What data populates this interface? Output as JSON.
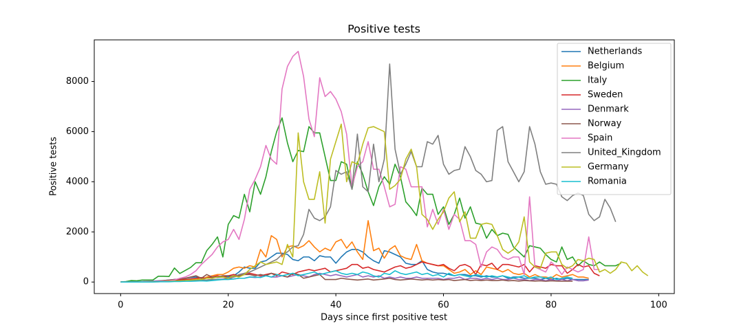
{
  "chart_data": {
    "type": "line",
    "title": "Positive tests",
    "x_label": "Days since first positive test",
    "y_label": "Positive tests",
    "xlim": [
      -4.9,
      102.9
    ],
    "ylim": [
      -460,
      9660
    ],
    "xticks": [
      0,
      20,
      40,
      60,
      80,
      100
    ],
    "yticks": [
      0,
      2000,
      4000,
      6000,
      8000
    ],
    "legend": "upper right",
    "x": [
      0,
      1,
      2,
      3,
      4,
      5,
      6,
      7,
      8,
      9,
      10,
      11,
      12,
      13,
      14,
      15,
      16,
      17,
      18,
      19,
      20,
      21,
      22,
      23,
      24,
      25,
      26,
      27,
      28,
      29,
      30,
      31,
      32,
      33,
      34,
      35,
      36,
      37,
      38,
      39,
      40,
      41,
      42,
      43,
      44,
      45,
      46,
      47,
      48,
      49,
      50,
      51,
      52,
      53,
      54,
      55,
      56,
      57,
      58,
      59,
      60,
      61,
      62,
      63,
      64,
      65,
      66,
      67,
      68,
      69,
      70,
      71,
      72,
      73,
      74,
      75,
      76,
      77,
      78,
      79,
      80,
      81,
      82,
      83,
      84,
      85,
      86,
      87,
      88,
      89,
      90,
      91,
      92,
      93,
      94,
      95,
      96,
      97,
      98
    ],
    "series": [
      {
        "name": "Netherlands",
        "color": "#1f77b4",
        "values": [
          0,
          0,
          0,
          10,
          20,
          30,
          40,
          50,
          60,
          80,
          100,
          120,
          150,
          180,
          200,
          150,
          170,
          200,
          180,
          200,
          200,
          250,
          400,
          600,
          550,
          550,
          800,
          850,
          1000,
          1150,
          1150,
          1100,
          900,
          850,
          1000,
          1000,
          850,
          1050,
          1000,
          1000,
          750,
          1000,
          1200,
          1300,
          1300,
          1200,
          1000,
          850,
          750,
          1250,
          1200,
          1100,
          1000,
          750,
          700,
          700,
          850,
          500,
          400,
          350,
          350,
          300,
          250,
          300,
          300,
          250,
          250,
          200,
          250,
          200,
          200,
          250,
          150,
          200,
          200,
          150,
          150,
          150,
          100,
          150,
          100,
          150,
          100,
          150,
          100,
          100,
          100,
          100,
          null,
          null,
          null,
          null,
          null,
          null,
          null,
          null,
          null,
          null,
          null
        ]
      },
      {
        "name": "Belgium",
        "color": "#ff7f0e",
        "values": [
          0,
          0,
          0,
          0,
          10,
          10,
          20,
          20,
          40,
          50,
          60,
          80,
          100,
          100,
          150,
          100,
          200,
          250,
          300,
          300,
          400,
          550,
          600,
          550,
          650,
          600,
          1300,
          1000,
          1850,
          1700,
          1000,
          1400,
          1450,
          1350,
          1450,
          1650,
          1400,
          1200,
          1350,
          1250,
          1600,
          1700,
          1350,
          1600,
          1200,
          900,
          2450,
          1250,
          1350,
          950,
          1300,
          1450,
          1050,
          950,
          900,
          1500,
          850,
          750,
          700,
          650,
          650,
          500,
          350,
          400,
          500,
          300,
          450,
          300,
          600,
          550,
          500,
          400,
          500,
          350,
          300,
          350,
          200,
          300,
          200,
          200,
          150,
          300,
          200,
          250,
          300,
          200,
          200,
          150,
          null,
          null,
          null,
          null,
          null,
          null,
          null,
          null,
          null,
          null,
          null
        ]
      },
      {
        "name": "Italy",
        "color": "#2ca02c",
        "values": [
          0,
          20,
          60,
          50,
          80,
          80,
          80,
          230,
          230,
          220,
          560,
          340,
          460,
          580,
          770,
          770,
          1250,
          1500,
          1800,
          1000,
          2300,
          2650,
          2550,
          3500,
          2800,
          4000,
          3500,
          4200,
          5200,
          6000,
          6550,
          5550,
          4800,
          5250,
          5200,
          6200,
          5950,
          5950,
          5000,
          4050,
          4050,
          4800,
          4700,
          3700,
          4800,
          4300,
          3600,
          3050,
          3800,
          4200,
          3900,
          4700,
          4200,
          3200,
          2950,
          2650,
          3750,
          3500,
          3500,
          2700,
          3000,
          2300,
          2700,
          3350,
          2550,
          3000,
          2350,
          2300,
          1750,
          2100,
          1850,
          1950,
          1900,
          1400,
          1200,
          1000,
          1450,
          1400,
          1350,
          1100,
          900,
          800,
          1400,
          900,
          1000,
          650,
          850,
          700,
          650,
          800,
          650,
          650,
          650,
          750,
          null,
          null,
          null,
          null,
          null
        ]
      },
      {
        "name": "Sweden",
        "color": "#d62728",
        "values": [
          0,
          0,
          0,
          10,
          10,
          20,
          20,
          30,
          40,
          50,
          60,
          80,
          100,
          120,
          150,
          180,
          150,
          200,
          250,
          200,
          250,
          300,
          250,
          300,
          350,
          300,
          250,
          300,
          350,
          250,
          400,
          350,
          300,
          400,
          450,
          500,
          450,
          500,
          550,
          400,
          450,
          500,
          550,
          700,
          700,
          550,
          600,
          500,
          450,
          400,
          500,
          600,
          650,
          550,
          600,
          700,
          800,
          750,
          700,
          650,
          700,
          550,
          450,
          650,
          700,
          600,
          300,
          700,
          650,
          750,
          500,
          700,
          700,
          650,
          600,
          700,
          400,
          650,
          600,
          550,
          700,
          650,
          650,
          350,
          500,
          700,
          600,
          650,
          350,
          250,
          null,
          null,
          null,
          null,
          null,
          null,
          null,
          null,
          null
        ]
      },
      {
        "name": "Denmark",
        "color": "#9467bd",
        "values": [
          0,
          0,
          0,
          0,
          0,
          10,
          10,
          20,
          20,
          20,
          30,
          40,
          50,
          60,
          60,
          80,
          80,
          100,
          100,
          120,
          150,
          120,
          150,
          150,
          200,
          180,
          200,
          250,
          200,
          200,
          250,
          200,
          250,
          300,
          250,
          200,
          300,
          350,
          300,
          250,
          300,
          250,
          200,
          250,
          300,
          200,
          250,
          200,
          250,
          150,
          200,
          150,
          200,
          150,
          150,
          200,
          150,
          150,
          150,
          150,
          100,
          150,
          150,
          200,
          100,
          150,
          150,
          100,
          150,
          100,
          150,
          100,
          100,
          150,
          100,
          100,
          50,
          100,
          100,
          50,
          100,
          50,
          100,
          50,
          100,
          50,
          50,
          80,
          null,
          null,
          null,
          null,
          null,
          null,
          null,
          null,
          null,
          null,
          null
        ]
      },
      {
        "name": "Norway",
        "color": "#8c564b",
        "values": [
          0,
          0,
          0,
          0,
          10,
          20,
          20,
          40,
          60,
          80,
          100,
          120,
          150,
          200,
          250,
          150,
          300,
          200,
          200,
          250,
          250,
          200,
          250,
          300,
          300,
          250,
          300,
          250,
          350,
          300,
          250,
          200,
          350,
          300,
          150,
          200,
          250,
          300,
          100,
          100,
          100,
          150,
          120,
          100,
          80,
          100,
          120,
          80,
          100,
          120,
          150,
          100,
          80,
          100,
          120,
          100,
          80,
          100,
          80,
          100,
          80,
          100,
          60,
          80,
          100,
          60,
          80,
          60,
          80,
          60,
          60,
          80,
          50,
          60,
          40,
          60,
          50,
          40,
          50,
          30,
          50,
          40,
          30,
          40,
          30,
          null,
          null,
          null,
          null,
          null,
          null,
          null,
          null,
          null,
          null,
          null,
          null,
          null,
          null
        ]
      },
      {
        "name": "Spain",
        "color": "#e377c2",
        "values": [
          0,
          0,
          10,
          10,
          10,
          20,
          30,
          30,
          40,
          50,
          80,
          150,
          200,
          300,
          450,
          700,
          900,
          1100,
          1400,
          1600,
          1700,
          2100,
          1700,
          2500,
          3700,
          4100,
          4600,
          5450,
          4900,
          4700,
          7700,
          8600,
          9000,
          9200,
          8200,
          6500,
          5800,
          8150,
          7400,
          7600,
          7300,
          6800,
          5900,
          3800,
          4600,
          4800,
          5600,
          4500,
          4500,
          3800,
          3000,
          3100,
          4600,
          4500,
          3800,
          3800,
          3800,
          2200,
          2900,
          2300,
          2900,
          2100,
          2700,
          2500,
          1650,
          1650,
          1500,
          600,
          1200,
          1400,
          1300,
          1000,
          900,
          1000,
          1000,
          300,
          3400,
          600,
          500,
          400,
          800,
          600,
          300,
          600,
          500,
          400,
          500,
          1800,
          500,
          500,
          null,
          null,
          null,
          null,
          null,
          null,
          null,
          null,
          null
        ]
      },
      {
        "name": "United_Kingdom",
        "color": "#7f7f7f",
        "values": [
          0,
          0,
          0,
          0,
          0,
          0,
          10,
          10,
          20,
          20,
          30,
          30,
          40,
          50,
          60,
          60,
          80,
          100,
          100,
          100,
          150,
          200,
          300,
          350,
          400,
          500,
          600,
          700,
          800,
          900,
          1100,
          1200,
          1400,
          1450,
          1900,
          2900,
          2550,
          2450,
          2600,
          3000,
          4450,
          4300,
          4400,
          3700,
          5900,
          3800,
          3600,
          5500,
          4000,
          4900,
          8700,
          5300,
          4300,
          4700,
          5200,
          4600,
          4600,
          5600,
          5500,
          5850,
          4700,
          4300,
          4450,
          4500,
          5400,
          5000,
          4450,
          4300,
          4000,
          4050,
          6050,
          6200,
          4800,
          4400,
          4000,
          4400,
          6200,
          5500,
          4400,
          3900,
          3950,
          3900,
          3400,
          3250,
          3450,
          3550,
          3450,
          2700,
          2450,
          2600,
          3300,
          2950,
          2400,
          null,
          null,
          null,
          null,
          null,
          null
        ]
      },
      {
        "name": "Germany",
        "color": "#bcbd22",
        "values": [
          0,
          0,
          0,
          0,
          0,
          0,
          10,
          10,
          20,
          30,
          40,
          50,
          60,
          80,
          100,
          100,
          150,
          150,
          200,
          200,
          150,
          250,
          200,
          300,
          500,
          650,
          800,
          700,
          750,
          800,
          700,
          1500,
          1000,
          5950,
          4000,
          3300,
          3300,
          4400,
          2350,
          4900,
          5600,
          6300,
          4000,
          4800,
          4700,
          5500,
          6150,
          6200,
          6100,
          6000,
          3700,
          3850,
          4100,
          4900,
          5300,
          4600,
          2700,
          2500,
          2100,
          2500,
          2800,
          3350,
          3600,
          2400,
          2800,
          1750,
          1750,
          2300,
          2350,
          2300,
          1850,
          1300,
          1150,
          1300,
          1600,
          2600,
          800,
          600,
          550,
          1150,
          1200,
          1200,
          700,
          550,
          650,
          900,
          850,
          950,
          900,
          400,
          500,
          350,
          500,
          800,
          750,
          450,
          650,
          400,
          250
        ]
      },
      {
        "name": "Romania",
        "color": "#17becf",
        "values": [
          0,
          0,
          0,
          0,
          0,
          0,
          0,
          10,
          10,
          10,
          20,
          20,
          30,
          30,
          40,
          50,
          40,
          60,
          80,
          100,
          100,
          120,
          150,
          150,
          200,
          200,
          180,
          250,
          200,
          300,
          250,
          300,
          350,
          250,
          300,
          350,
          400,
          300,
          350,
          400,
          450,
          350,
          300,
          350,
          300,
          400,
          350,
          250,
          200,
          350,
          300,
          450,
          350,
          300,
          350,
          400,
          300,
          350,
          250,
          300,
          200,
          350,
          250,
          300,
          250,
          200,
          300,
          250,
          200,
          250,
          200,
          250,
          200,
          150,
          200,
          250,
          150,
          200,
          200,
          150,
          200,
          100,
          150,
          200,
          150,
          null,
          null,
          null,
          null,
          null,
          null,
          null,
          null,
          null,
          null,
          null,
          null,
          null,
          null
        ]
      }
    ]
  }
}
